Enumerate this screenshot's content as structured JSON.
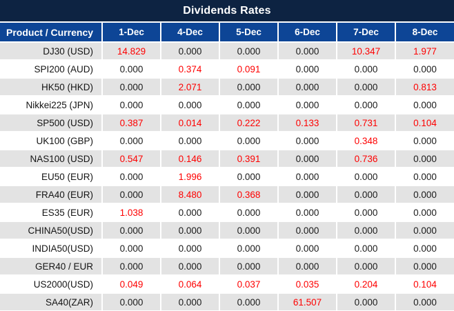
{
  "header": {
    "title": "Dividends Rates"
  },
  "colors": {
    "title_bar_bg": "#0d2342",
    "column_header_bg": "#0d4596",
    "row_stripe_bg": "#e3e3e3",
    "row_plain_bg": "#ffffff",
    "header_text": "#ffffff",
    "zero_value_text": "#1a1a1a",
    "nonzero_value_text": "#fe0000"
  },
  "chart_data": {
    "type": "table",
    "title": "Dividends Rates",
    "columns": [
      "Product / Currency",
      "1-Dec",
      "4-Dec",
      "5-Dec",
      "6-Dec",
      "7-Dec",
      "8-Dec"
    ],
    "rows": [
      [
        "DJ30 (USD)",
        "14.829",
        "0.000",
        "0.000",
        "0.000",
        "10.347",
        "1.977"
      ],
      [
        "SPI200 (AUD)",
        "0.000",
        "0.374",
        "0.091",
        "0.000",
        "0.000",
        "0.000"
      ],
      [
        "HK50 (HKD)",
        "0.000",
        "2.071",
        "0.000",
        "0.000",
        "0.000",
        "0.813"
      ],
      [
        "Nikkei225 (JPN)",
        "0.000",
        "0.000",
        "0.000",
        "0.000",
        "0.000",
        "0.000"
      ],
      [
        "SP500 (USD)",
        "0.387",
        "0.014",
        "0.222",
        "0.133",
        "0.731",
        "0.104"
      ],
      [
        "UK100 (GBP)",
        "0.000",
        "0.000",
        "0.000",
        "0.000",
        "0.348",
        "0.000"
      ],
      [
        "NAS100 (USD)",
        "0.547",
        "0.146",
        "0.391",
        "0.000",
        "0.736",
        "0.000"
      ],
      [
        "EU50 (EUR)",
        "0.000",
        "1.996",
        "0.000",
        "0.000",
        "0.000",
        "0.000"
      ],
      [
        "FRA40 (EUR)",
        "0.000",
        "8.480",
        "0.368",
        "0.000",
        "0.000",
        "0.000"
      ],
      [
        "ES35 (EUR)",
        "1.038",
        "0.000",
        "0.000",
        "0.000",
        "0.000",
        "0.000"
      ],
      [
        "CHINA50(USD)",
        "0.000",
        "0.000",
        "0.000",
        "0.000",
        "0.000",
        "0.000"
      ],
      [
        "INDIA50(USD)",
        "0.000",
        "0.000",
        "0.000",
        "0.000",
        "0.000",
        "0.000"
      ],
      [
        "GER40 / EUR",
        "0.000",
        "0.000",
        "0.000",
        "0.000",
        "0.000",
        "0.000"
      ],
      [
        "US2000(USD)",
        "0.049",
        "0.064",
        "0.037",
        "0.035",
        "0.204",
        "0.104"
      ],
      [
        "SA40(ZAR)",
        "0.000",
        "0.000",
        "0.000",
        "61.507",
        "0.000",
        "0.000"
      ]
    ],
    "layout": {
      "striped_rows": "odd rows gray, even rows white",
      "value_color_rule": "non-zero values rendered red, zero values black",
      "first_column_align": "right",
      "value_align": "center"
    }
  }
}
